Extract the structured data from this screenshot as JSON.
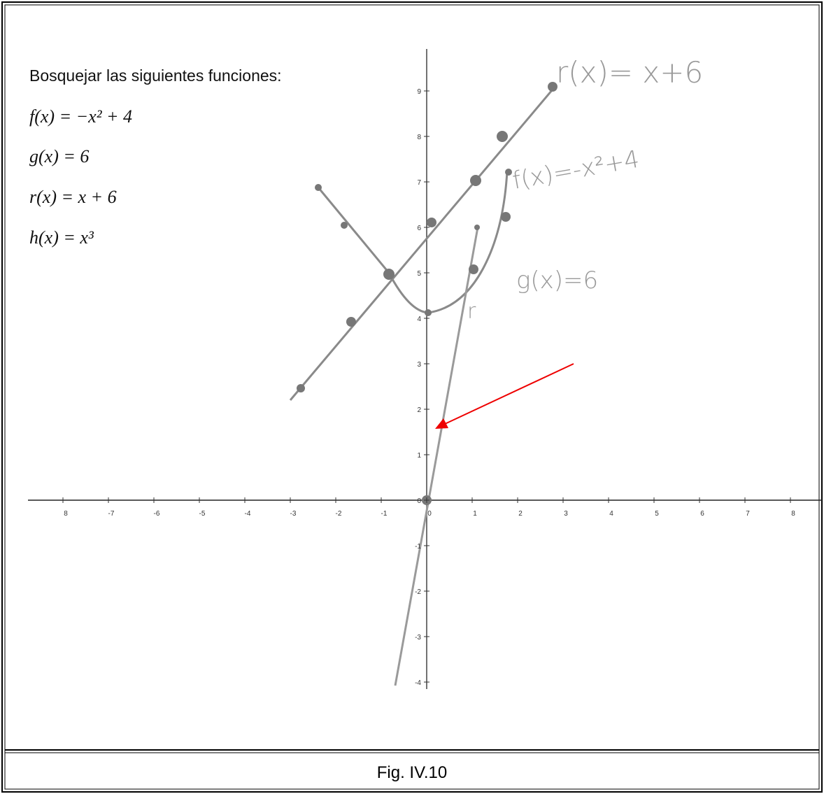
{
  "header": {
    "instruction": "Bosquejar las siguientes funciones:",
    "functions": [
      "f(x) = −x² + 4",
      "g(x) = 6",
      "r(x) = x + 6",
      "h(x) = x³"
    ]
  },
  "graph": {
    "x_tick_labels": [
      "8",
      "-7",
      "-6",
      "-5",
      "-4",
      "-3",
      "-2",
      "-1",
      "0",
      "1",
      "2",
      "3",
      "4",
      "5",
      "6",
      "7",
      "8"
    ],
    "y_tick_labels": [
      "9",
      "8",
      "7",
      "6",
      "5",
      "4",
      "3",
      "2",
      "1",
      "0",
      "-1",
      "-2",
      "-3",
      "-4"
    ],
    "annotations": [
      "r(x)= x+6",
      "f(x)=-x²+4",
      "g(x)=6",
      "r"
    ]
  },
  "caption": "Fig. IV.10"
}
